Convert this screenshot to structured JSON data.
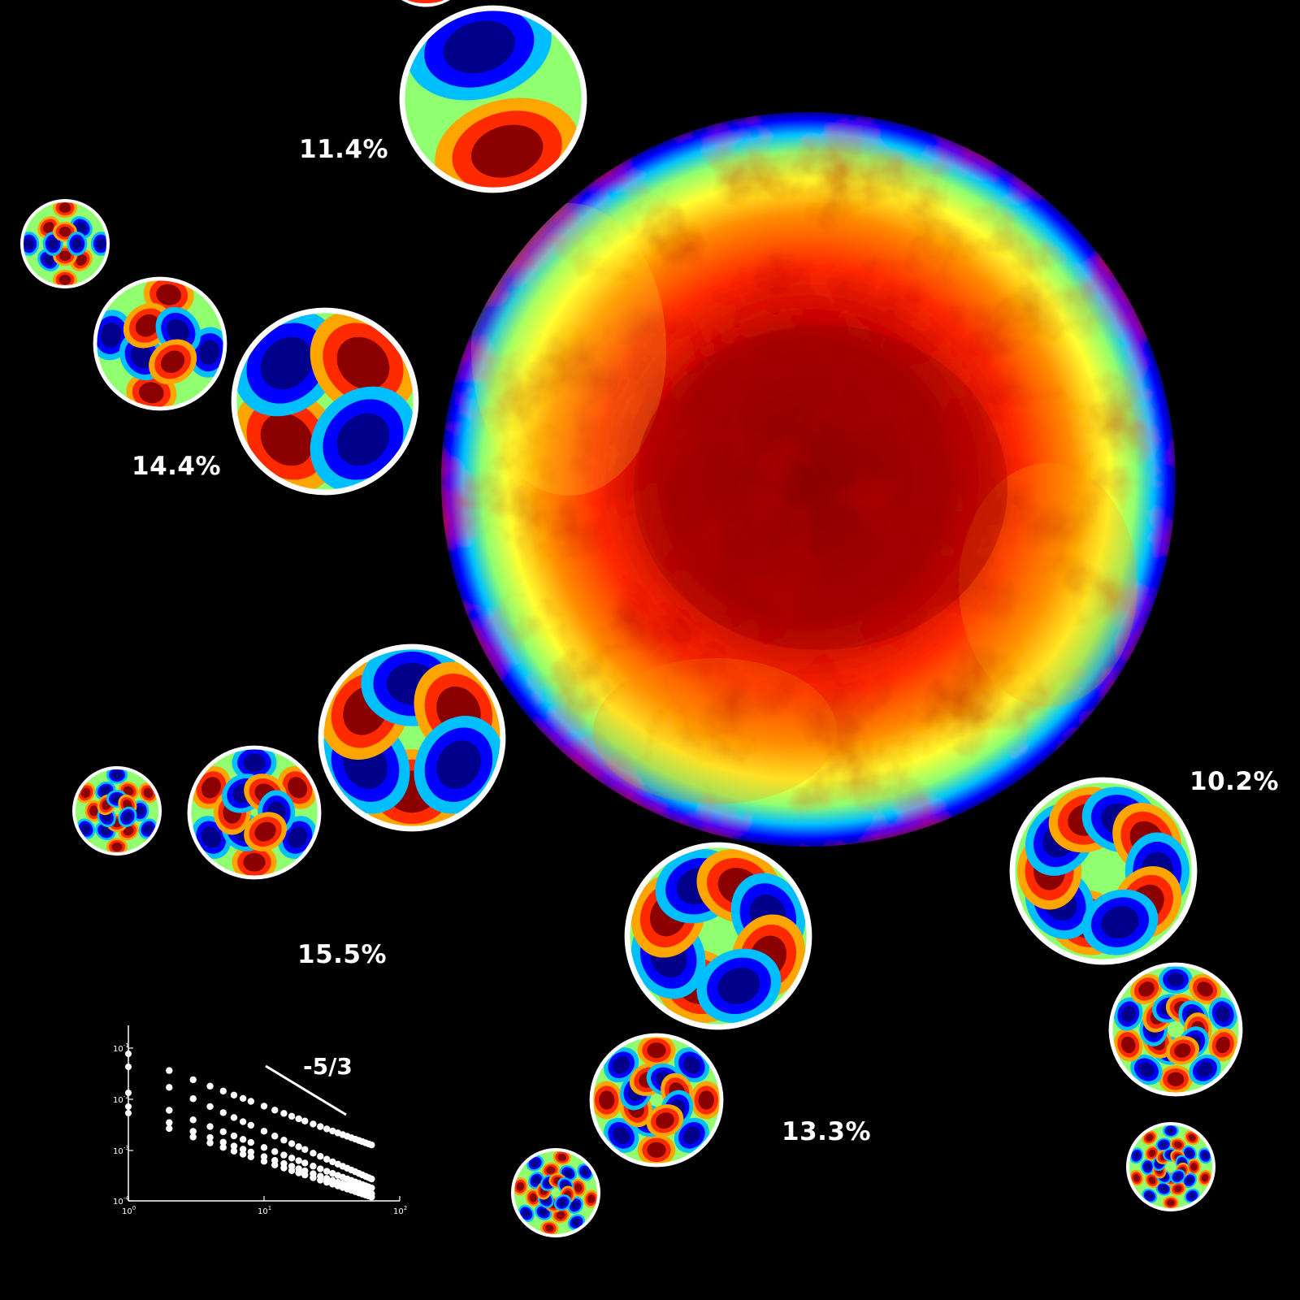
{
  "colors": {
    "background": "#000000",
    "ring": "#ffffff",
    "colormap": [
      "#00008b",
      "#0000ff",
      "#00bfff",
      "#90ff70",
      "#ffff33",
      "#ffa500",
      "#ff2a00",
      "#8b0000"
    ]
  },
  "labels": {
    "mode_group_1": "11.4%",
    "mode_group_2": "14.4%",
    "mode_group_3": "15.5%",
    "mode_group_4": "13.3%",
    "mode_group_5": "10.2%"
  },
  "mode_groups": [
    {
      "label_key": "mode_group_1",
      "azimuthal_orders": [
        1
      ]
    },
    {
      "label_key": "mode_group_2",
      "azimuthal_orders": [
        2,
        2,
        2
      ]
    },
    {
      "label_key": "mode_group_3",
      "azimuthal_orders": [
        3,
        3,
        3
      ]
    },
    {
      "label_key": "mode_group_4",
      "azimuthal_orders": [
        4,
        4,
        4
      ]
    },
    {
      "label_key": "mode_group_5",
      "azimuthal_orders": [
        5,
        5,
        5
      ]
    }
  ],
  "inset_plot": {
    "slope_label": "-5/3",
    "x_ticks": [
      "10^0",
      "10^1",
      "10^2"
    ],
    "y_ticks": [
      "10^-1",
      "10^-2",
      "10^-3",
      "10^-4"
    ],
    "scale": "log-log"
  }
}
